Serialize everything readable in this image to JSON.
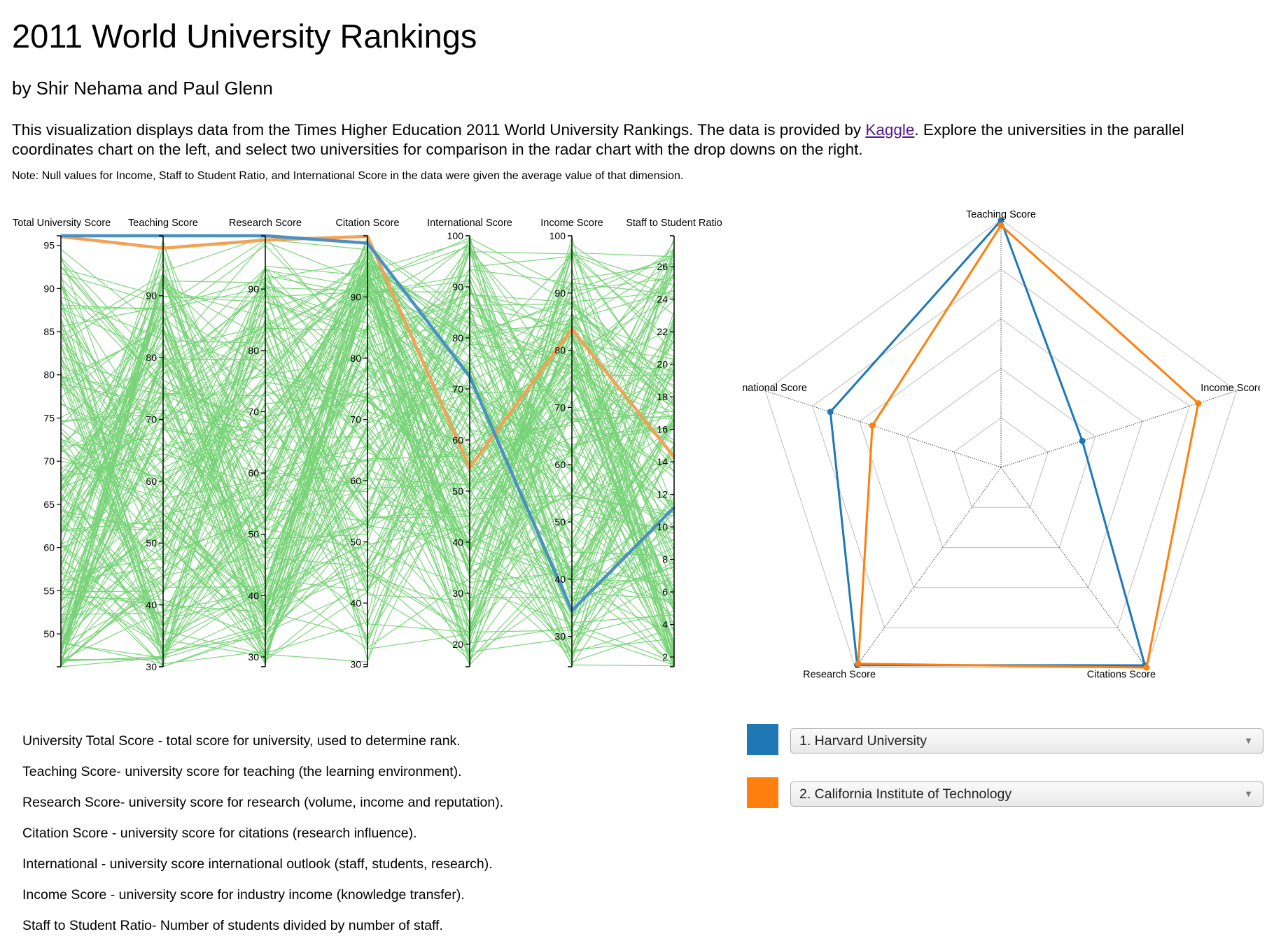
{
  "header": {
    "title": "2011 World University Rankings",
    "byline": "by Shir Nehama and Paul Glenn",
    "intro_before_link": "This visualization displays data from the Times Higher Education 2011 World University Rankings. The data is provided by ",
    "intro_link": "Kaggle",
    "intro_after_link": ". Explore the universities in the parallel coordinates chart on the left, and select two universities for comparison in the radar chart with the drop downs on the right.",
    "note": "Note: Null values for Income, Staff to Student Ratio, and International Score in the data were given the average value of that dimension."
  },
  "colors": {
    "background_lines": "#77d377",
    "university_1": "#1f77b4",
    "university_2": "#ff7f0e",
    "highlight_1": "#4a90c4",
    "highlight_2": "#f4a055"
  },
  "chart_data": [
    {
      "type": "parallel_coordinates",
      "dimensions": [
        {
          "name": "Total University Score",
          "domain": [
            46.2,
            96.1
          ],
          "ticks": [
            50,
            55,
            60,
            65,
            70,
            75,
            80,
            85,
            90,
            95
          ]
        },
        {
          "name": "Teaching Score",
          "domain": [
            30,
            99.7
          ],
          "ticks": [
            30,
            40,
            50,
            60,
            70,
            80,
            90
          ]
        },
        {
          "name": "Research Score",
          "domain": [
            28.4,
            98.7
          ],
          "ticks": [
            30,
            40,
            50,
            60,
            70,
            80,
            90
          ]
        },
        {
          "name": "Citation Score",
          "domain": [
            29.6,
            100
          ],
          "ticks": [
            30,
            40,
            50,
            60,
            70,
            80,
            90
          ]
        },
        {
          "name": "International Score",
          "domain": [
            15.6,
            100
          ],
          "ticks": [
            20,
            30,
            40,
            50,
            60,
            70,
            80,
            90,
            100
          ]
        },
        {
          "name": "Income Score",
          "domain": [
            24.7,
            100
          ],
          "ticks": [
            30,
            40,
            50,
            60,
            70,
            80,
            90,
            100
          ]
        },
        {
          "name": "Staff to Student Ratio",
          "domain": [
            1.4,
            27.9
          ],
          "ticks": [
            2,
            4,
            6,
            8,
            10,
            12,
            14,
            16,
            18,
            20,
            22,
            24,
            26
          ]
        }
      ],
      "highlighted": [
        {
          "name": "1. Harvard University",
          "values": [
            96.1,
            99.7,
            98.7,
            98.8,
            72.4,
            34.5,
            11.2
          ]
        },
        {
          "name": "2. California Institute of Technology",
          "values": [
            96.0,
            97.7,
            98.0,
            99.9,
            54.6,
            83.7,
            14.3
          ]
        }
      ],
      "background_line_count": 200
    },
    {
      "type": "radar",
      "axes": [
        "Teaching Score",
        "Income Score",
        "Citations Score",
        "Research Score",
        "International Score"
      ],
      "max": 100,
      "levels": 5,
      "series": [
        {
          "name": "1. Harvard University",
          "values": [
            99.7,
            34.5,
            98.8,
            98.7,
            72.4
          ]
        },
        {
          "name": "2. California Institute of Technology",
          "values": [
            97.7,
            83.7,
            99.9,
            98.0,
            54.6
          ]
        }
      ]
    }
  ],
  "legend_list": [
    "University Total Score - total score for university, used to determine rank.",
    "Teaching Score- university score for teaching (the learning environment).",
    "Research Score- university score for research (volume, income and reputation).",
    "Citation Score - university score for citations (research influence).",
    "International - university score international outlook (staff, students, research).",
    "Income Score - university score for industry income (knowledge transfer).",
    "Staff to Student Ratio- Number of students divided by number of staff."
  ],
  "selectors": [
    {
      "selected": "1. Harvard University",
      "color": "#1f77b4"
    },
    {
      "selected": "2. California Institute of Technology",
      "color": "#ff7f0e"
    }
  ],
  "icons": {
    "dropdown": "caret-down-icon"
  }
}
